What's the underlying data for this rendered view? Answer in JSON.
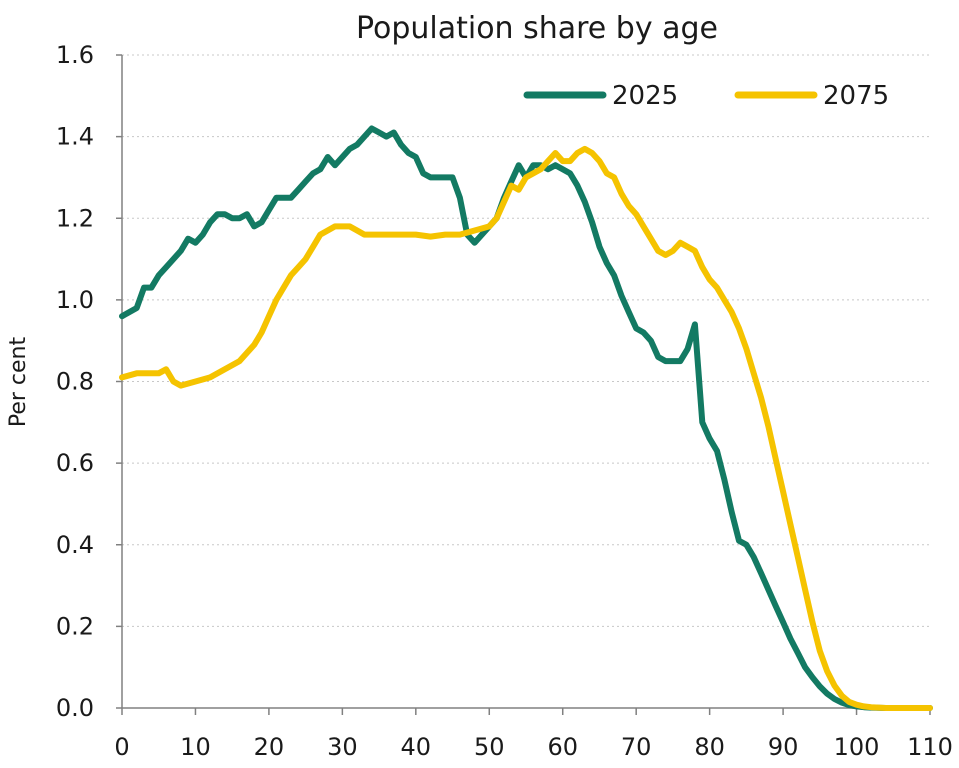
{
  "chart_data": {
    "type": "line",
    "title": "Population share by age",
    "xlabel": "",
    "ylabel": "Per cent",
    "xlim": [
      0,
      110
    ],
    "ylim": [
      0,
      1.6
    ],
    "xticks": [
      0,
      10,
      20,
      30,
      40,
      50,
      60,
      70,
      80,
      90,
      100,
      110
    ],
    "yticks": [
      "0.0",
      "0.2",
      "0.4",
      "0.6",
      "0.8",
      "1.0",
      "1.2",
      "1.4",
      "1.6"
    ],
    "grid": true,
    "legend_position": "top-right",
    "series": [
      {
        "name": "2025",
        "color": "#137a63",
        "points": [
          [
            0,
            0.96
          ],
          [
            1,
            0.97
          ],
          [
            2,
            0.98
          ],
          [
            3,
            1.03
          ],
          [
            4,
            1.03
          ],
          [
            5,
            1.06
          ],
          [
            6,
            1.08
          ],
          [
            7,
            1.1
          ],
          [
            8,
            1.12
          ],
          [
            9,
            1.15
          ],
          [
            10,
            1.14
          ],
          [
            11,
            1.16
          ],
          [
            12,
            1.19
          ],
          [
            13,
            1.21
          ],
          [
            14,
            1.21
          ],
          [
            15,
            1.2
          ],
          [
            16,
            1.2
          ],
          [
            17,
            1.21
          ],
          [
            18,
            1.18
          ],
          [
            19,
            1.19
          ],
          [
            20,
            1.22
          ],
          [
            21,
            1.25
          ],
          [
            22,
            1.25
          ],
          [
            23,
            1.25
          ],
          [
            24,
            1.27
          ],
          [
            25,
            1.29
          ],
          [
            26,
            1.31
          ],
          [
            27,
            1.32
          ],
          [
            28,
            1.35
          ],
          [
            29,
            1.33
          ],
          [
            30,
            1.35
          ],
          [
            31,
            1.37
          ],
          [
            32,
            1.38
          ],
          [
            33,
            1.4
          ],
          [
            34,
            1.42
          ],
          [
            35,
            1.41
          ],
          [
            36,
            1.4
          ],
          [
            37,
            1.41
          ],
          [
            38,
            1.38
          ],
          [
            39,
            1.36
          ],
          [
            40,
            1.35
          ],
          [
            41,
            1.31
          ],
          [
            42,
            1.3
          ],
          [
            43,
            1.3
          ],
          [
            44,
            1.3
          ],
          [
            45,
            1.3
          ],
          [
            46,
            1.25
          ],
          [
            47,
            1.16
          ],
          [
            48,
            1.14
          ],
          [
            49,
            1.16
          ],
          [
            50,
            1.18
          ],
          [
            51,
            1.2
          ],
          [
            52,
            1.25
          ],
          [
            53,
            1.29
          ],
          [
            54,
            1.33
          ],
          [
            55,
            1.3
          ],
          [
            56,
            1.33
          ],
          [
            57,
            1.33
          ],
          [
            58,
            1.32
          ],
          [
            59,
            1.33
          ],
          [
            60,
            1.32
          ],
          [
            61,
            1.31
          ],
          [
            62,
            1.28
          ],
          [
            63,
            1.24
          ],
          [
            64,
            1.19
          ],
          [
            65,
            1.13
          ],
          [
            66,
            1.09
          ],
          [
            67,
            1.06
          ],
          [
            68,
            1.01
          ],
          [
            69,
            0.97
          ],
          [
            70,
            0.93
          ],
          [
            71,
            0.92
          ],
          [
            72,
            0.9
          ],
          [
            73,
            0.86
          ],
          [
            74,
            0.85
          ],
          [
            75,
            0.85
          ],
          [
            76,
            0.85
          ],
          [
            77,
            0.88
          ],
          [
            78,
            0.94
          ],
          [
            79,
            0.7
          ],
          [
            80,
            0.66
          ],
          [
            81,
            0.63
          ],
          [
            82,
            0.56
          ],
          [
            83,
            0.48
          ],
          [
            84,
            0.41
          ],
          [
            85,
            0.4
          ],
          [
            86,
            0.37
          ],
          [
            87,
            0.33
          ],
          [
            88,
            0.29
          ],
          [
            89,
            0.25
          ],
          [
            90,
            0.21
          ],
          [
            91,
            0.17
          ],
          [
            92,
            0.135
          ],
          [
            93,
            0.1
          ],
          [
            94,
            0.075
          ],
          [
            95,
            0.053
          ],
          [
            96,
            0.035
          ],
          [
            97,
            0.022
          ],
          [
            98,
            0.013
          ],
          [
            99,
            0.007
          ],
          [
            100,
            0.004
          ],
          [
            101,
            0.002
          ],
          [
            102,
            0.001
          ],
          [
            104,
            0.0
          ],
          [
            110,
            0.0
          ]
        ]
      },
      {
        "name": "2075",
        "color": "#f5c300",
        "points": [
          [
            0,
            0.81
          ],
          [
            2,
            0.82
          ],
          [
            5,
            0.82
          ],
          [
            6,
            0.83
          ],
          [
            7,
            0.8
          ],
          [
            8,
            0.79
          ],
          [
            10,
            0.8
          ],
          [
            12,
            0.81
          ],
          [
            14,
            0.83
          ],
          [
            16,
            0.85
          ],
          [
            17,
            0.87
          ],
          [
            18,
            0.89
          ],
          [
            19,
            0.92
          ],
          [
            20,
            0.96
          ],
          [
            21,
            1.0
          ],
          [
            22,
            1.03
          ],
          [
            23,
            1.06
          ],
          [
            24,
            1.08
          ],
          [
            25,
            1.1
          ],
          [
            26,
            1.13
          ],
          [
            27,
            1.16
          ],
          [
            28,
            1.17
          ],
          [
            29,
            1.18
          ],
          [
            30,
            1.18
          ],
          [
            31,
            1.18
          ],
          [
            32,
            1.17
          ],
          [
            33,
            1.16
          ],
          [
            34,
            1.16
          ],
          [
            35,
            1.16
          ],
          [
            36,
            1.16
          ],
          [
            38,
            1.16
          ],
          [
            40,
            1.16
          ],
          [
            42,
            1.155
          ],
          [
            44,
            1.16
          ],
          [
            46,
            1.16
          ],
          [
            48,
            1.17
          ],
          [
            50,
            1.18
          ],
          [
            51,
            1.2
          ],
          [
            52,
            1.24
          ],
          [
            53,
            1.28
          ],
          [
            54,
            1.27
          ],
          [
            55,
            1.3
          ],
          [
            56,
            1.31
          ],
          [
            57,
            1.32
          ],
          [
            58,
            1.34
          ],
          [
            59,
            1.36
          ],
          [
            60,
            1.34
          ],
          [
            61,
            1.34
          ],
          [
            62,
            1.36
          ],
          [
            63,
            1.37
          ],
          [
            64,
            1.36
          ],
          [
            65,
            1.34
          ],
          [
            66,
            1.31
          ],
          [
            67,
            1.3
          ],
          [
            68,
            1.26
          ],
          [
            69,
            1.23
          ],
          [
            70,
            1.21
          ],
          [
            71,
            1.18
          ],
          [
            72,
            1.15
          ],
          [
            73,
            1.12
          ],
          [
            74,
            1.11
          ],
          [
            75,
            1.12
          ],
          [
            76,
            1.14
          ],
          [
            77,
            1.13
          ],
          [
            78,
            1.12
          ],
          [
            79,
            1.08
          ],
          [
            80,
            1.05
          ],
          [
            81,
            1.03
          ],
          [
            82,
            1.0
          ],
          [
            83,
            0.97
          ],
          [
            84,
            0.93
          ],
          [
            85,
            0.88
          ],
          [
            86,
            0.82
          ],
          [
            87,
            0.76
          ],
          [
            88,
            0.69
          ],
          [
            89,
            0.61
          ],
          [
            90,
            0.53
          ],
          [
            91,
            0.45
          ],
          [
            92,
            0.37
          ],
          [
            93,
            0.29
          ],
          [
            94,
            0.21
          ],
          [
            95,
            0.14
          ],
          [
            96,
            0.09
          ],
          [
            97,
            0.055
          ],
          [
            98,
            0.03
          ],
          [
            99,
            0.015
          ],
          [
            100,
            0.008
          ],
          [
            101,
            0.004
          ],
          [
            102,
            0.002
          ],
          [
            104,
            0.0
          ],
          [
            110,
            0.0
          ]
        ]
      }
    ]
  }
}
